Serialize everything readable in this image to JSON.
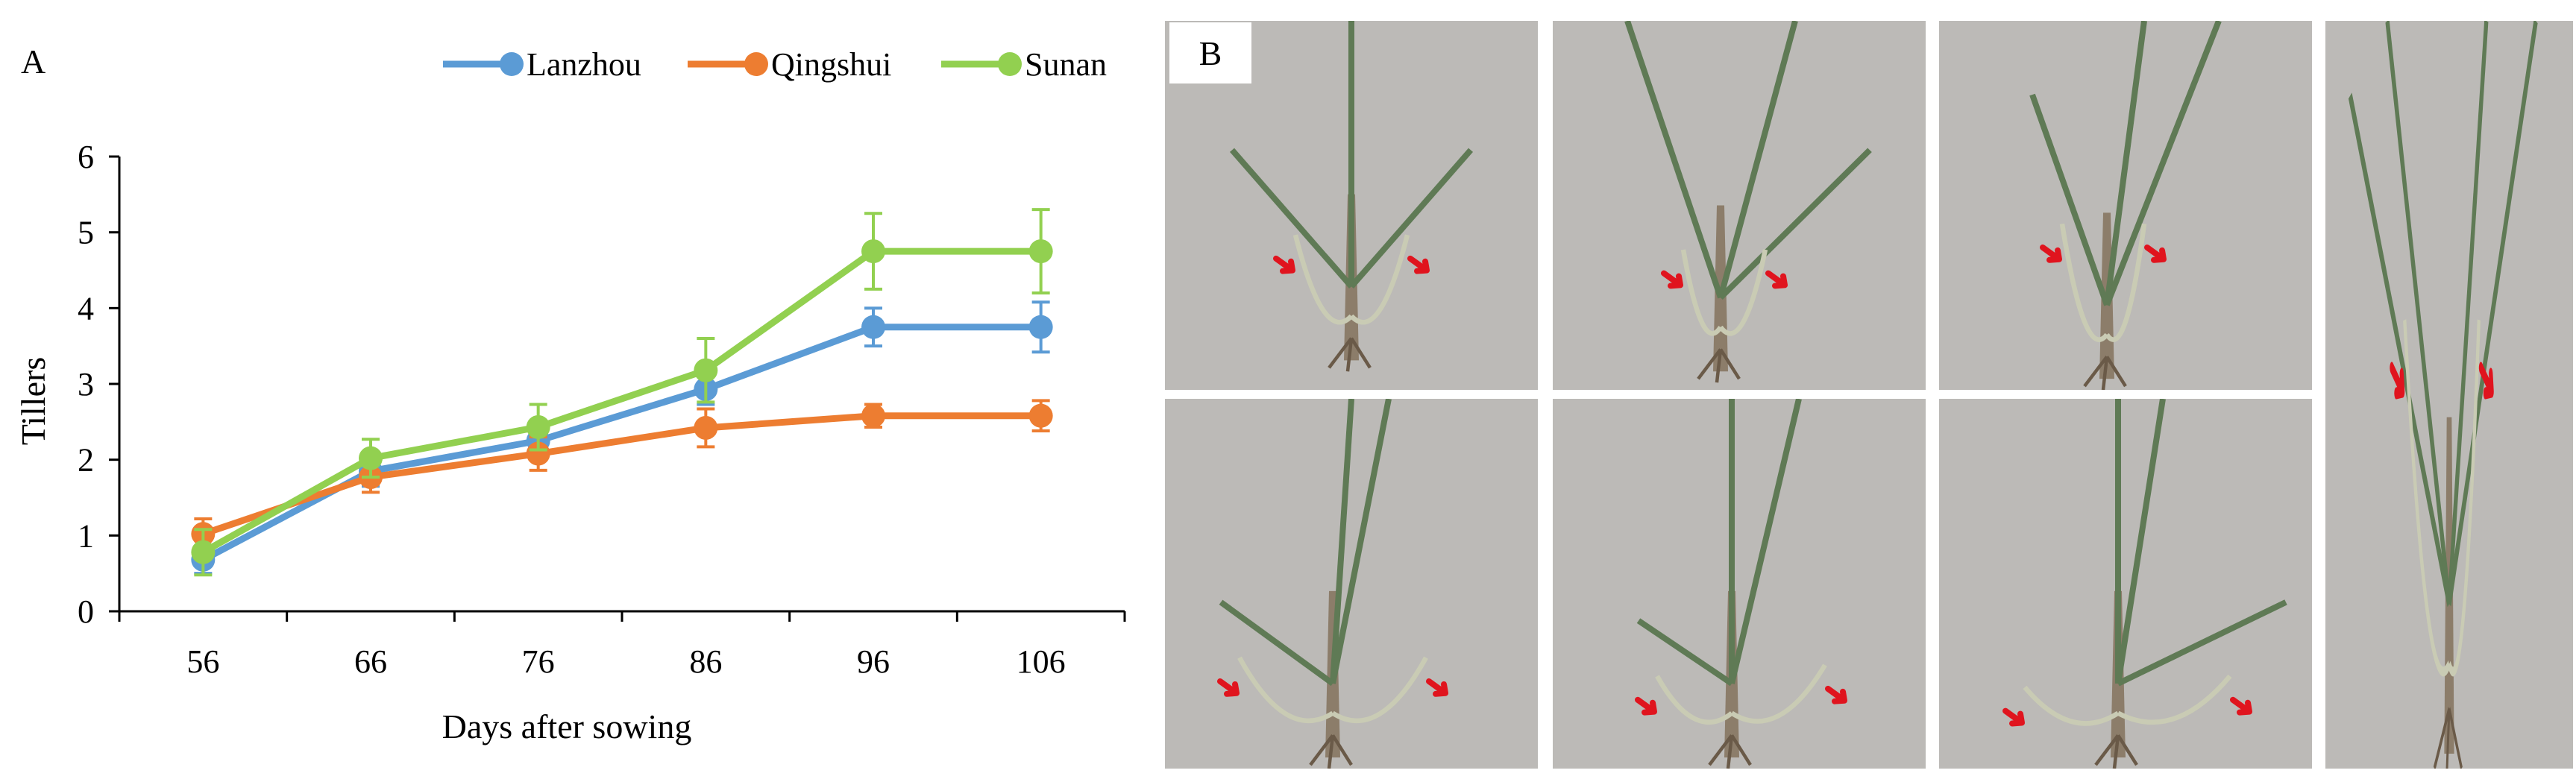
{
  "panel_a_label": "A",
  "panel_b_label": "B",
  "chart_data": {
    "type": "line",
    "title": "",
    "xlabel": "Days after sowing",
    "ylabel": "Tillers",
    "categories": [
      "56",
      "66",
      "76",
      "86",
      "96",
      "106"
    ],
    "ylim": [
      0,
      6
    ],
    "yticks": [
      "0",
      "1",
      "2",
      "3",
      "4",
      "5",
      "6"
    ],
    "grid": false,
    "legend_position": "top",
    "series": [
      {
        "name": "Lanzhou",
        "color": "#5b9bd5",
        "values": [
          0.68,
          1.85,
          2.25,
          2.93,
          3.75,
          3.75
        ],
        "errors": [
          0.18,
          0.2,
          0.2,
          0.2,
          0.25,
          0.33
        ]
      },
      {
        "name": "Qingshui",
        "color": "#ed7d31",
        "values": [
          1.02,
          1.77,
          2.08,
          2.42,
          2.58,
          2.58
        ],
        "errors": [
          0.2,
          0.2,
          0.22,
          0.25,
          0.15,
          0.2
        ]
      },
      {
        "name": "Sunan",
        "color": "#92d050",
        "values": [
          0.78,
          2.02,
          2.43,
          3.18,
          4.75,
          4.75
        ],
        "errors": [
          0.3,
          0.25,
          0.3,
          0.42,
          0.5,
          0.55
        ]
      }
    ]
  },
  "photo_panels": [
    {
      "name": "photo-panel-1"
    },
    {
      "name": "photo-panel-2"
    },
    {
      "name": "photo-panel-3"
    },
    {
      "name": "photo-panel-4"
    },
    {
      "name": "photo-panel-5"
    },
    {
      "name": "photo-panel-6"
    },
    {
      "name": "photo-panel-7"
    }
  ]
}
